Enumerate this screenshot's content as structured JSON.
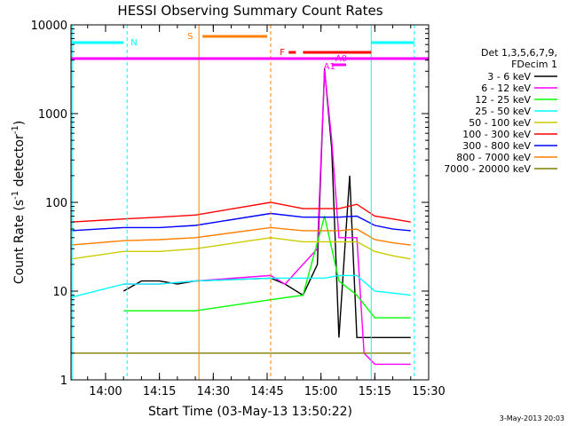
{
  "chart_data": {
    "type": "line",
    "title": "HESSI Observing Summary Count Rates",
    "xlabel": "Start Time (03-May-13 13:50:22)",
    "ylabel_main": "Count Rate (s",
    "ylabel_exp1": "-1",
    "ylabel_mid": " detector",
    "ylabel_exp2": "-1",
    "ylabel_end": ")",
    "date_stamp": "3-May-2013 20:03",
    "yscale": "log",
    "xlim": [
      "13:50:22",
      "15:30"
    ],
    "ylim": [
      1,
      10000
    ],
    "x_ticks": [
      "14:00",
      "14:15",
      "14:30",
      "14:45",
      "15:00",
      "15:15",
      "15:30"
    ],
    "y_ticks": [
      "1",
      "10",
      "100",
      "1000",
      "10000"
    ],
    "legend_header": [
      "Det 1,3,5,6,7,9,",
      "FDecim 1"
    ],
    "legend_placement": "right",
    "series": [
      {
        "name": "3 - 6 keV",
        "color": "#000000",
        "x": [
          "13:50:22",
          "14:05",
          "14:10",
          "14:15",
          "14:20",
          "14:25",
          "14:46",
          "14:50",
          "14:55",
          "14:59",
          "15:01",
          "15:03",
          "15:05",
          "15:08",
          "15:10",
          "15:12",
          "15:15",
          "15:20",
          "15:25"
        ],
        "y": [
          null,
          10,
          13,
          13,
          12,
          13,
          14,
          12,
          9,
          20,
          3200,
          400,
          3,
          200,
          3,
          3,
          3,
          3,
          3
        ]
      },
      {
        "name": "6 - 12 keV",
        "color": "#ff00ff",
        "x": [
          "14:05",
          "14:15",
          "14:25",
          "14:46",
          "14:50",
          "14:55",
          "14:59",
          "15:01",
          "15:03",
          "15:05",
          "15:08",
          "15:10",
          "15:12",
          "15:15",
          "15:20",
          "15:25"
        ],
        "y": [
          12,
          12,
          13,
          15,
          12,
          20,
          30,
          3100,
          500,
          40,
          40,
          40,
          2,
          1.5,
          1.5,
          1.5
        ]
      },
      {
        "name": "12 - 25 keV",
        "color": "#00ff00",
        "x": [
          "13:50:22",
          "14:05",
          "14:15",
          "14:25",
          "14:46",
          "14:55",
          "15:01",
          "15:05",
          "15:10",
          "15:15",
          "15:20",
          "15:25"
        ],
        "y": [
          null,
          6,
          6,
          6,
          8,
          9,
          70,
          13,
          9,
          5,
          5,
          5
        ]
      },
      {
        "name": "25 - 50 keV",
        "color": "#00ffff",
        "x": [
          "13:50:22",
          "14:05",
          "14:15",
          "14:25",
          "14:46",
          "14:55",
          "15:01",
          "15:05",
          "15:10",
          "15:15",
          "15:20",
          "15:25"
        ],
        "y": [
          8.5,
          12,
          12,
          13,
          14,
          14,
          14,
          15,
          15,
          10,
          9.5,
          9
        ]
      },
      {
        "name": "50 - 100 keV",
        "color": "#cccc00",
        "x": [
          "13:50:22",
          "14:05",
          "14:15",
          "14:25",
          "14:46",
          "14:55",
          "15:01",
          "15:05",
          "15:10",
          "15:15",
          "15:20",
          "15:25"
        ],
        "y": [
          23,
          28,
          28,
          30,
          40,
          36,
          36,
          36,
          36,
          28,
          25,
          23
        ]
      },
      {
        "name": "100 - 300 keV",
        "color": "#ff0000",
        "x": [
          "13:50:22",
          "14:05",
          "14:15",
          "14:25",
          "14:46",
          "14:55",
          "15:01",
          "15:05",
          "15:10",
          "15:15",
          "15:20",
          "15:25"
        ],
        "y": [
          60,
          65,
          68,
          72,
          100,
          85,
          85,
          85,
          95,
          70,
          65,
          60
        ]
      },
      {
        "name": "300 - 800 keV",
        "color": "#0000ff",
        "x": [
          "13:50:22",
          "14:05",
          "14:15",
          "14:25",
          "14:46",
          "14:55",
          "15:01",
          "15:05",
          "15:10",
          "15:15",
          "15:20",
          "15:25"
        ],
        "y": [
          48,
          52,
          52,
          55,
          75,
          68,
          68,
          68,
          70,
          55,
          50,
          48
        ]
      },
      {
        "name": "800 - 7000 keV",
        "color": "#ff7f00",
        "x": [
          "13:50:22",
          "14:05",
          "14:15",
          "14:25",
          "14:46",
          "14:55",
          "15:01",
          "15:05",
          "15:10",
          "15:15",
          "15:20",
          "15:25"
        ],
        "y": [
          33,
          37,
          38,
          40,
          52,
          48,
          48,
          48,
          50,
          38,
          35,
          33
        ]
      },
      {
        "name": "7000 - 20000 keV",
        "color": "#7f7f00",
        "x": [
          "13:50:22",
          "14:05",
          "14:15",
          "14:25",
          "14:46",
          "14:55",
          "15:01",
          "15:05",
          "15:10",
          "15:15",
          "15:20",
          "15:25"
        ],
        "y": [
          2,
          2,
          2,
          2,
          2,
          2,
          2,
          2,
          2,
          2,
          2,
          2
        ]
      }
    ],
    "annotations": [
      {
        "label": "N",
        "color": "#00ffff"
      },
      {
        "label": "S",
        "color": "#ff7f00"
      },
      {
        "label": "F",
        "color": "#ff0000"
      },
      {
        "label": "A0",
        "color": "#ff00ff"
      },
      {
        "label": "A1",
        "color": "#ff00ff"
      }
    ],
    "grid": false
  }
}
